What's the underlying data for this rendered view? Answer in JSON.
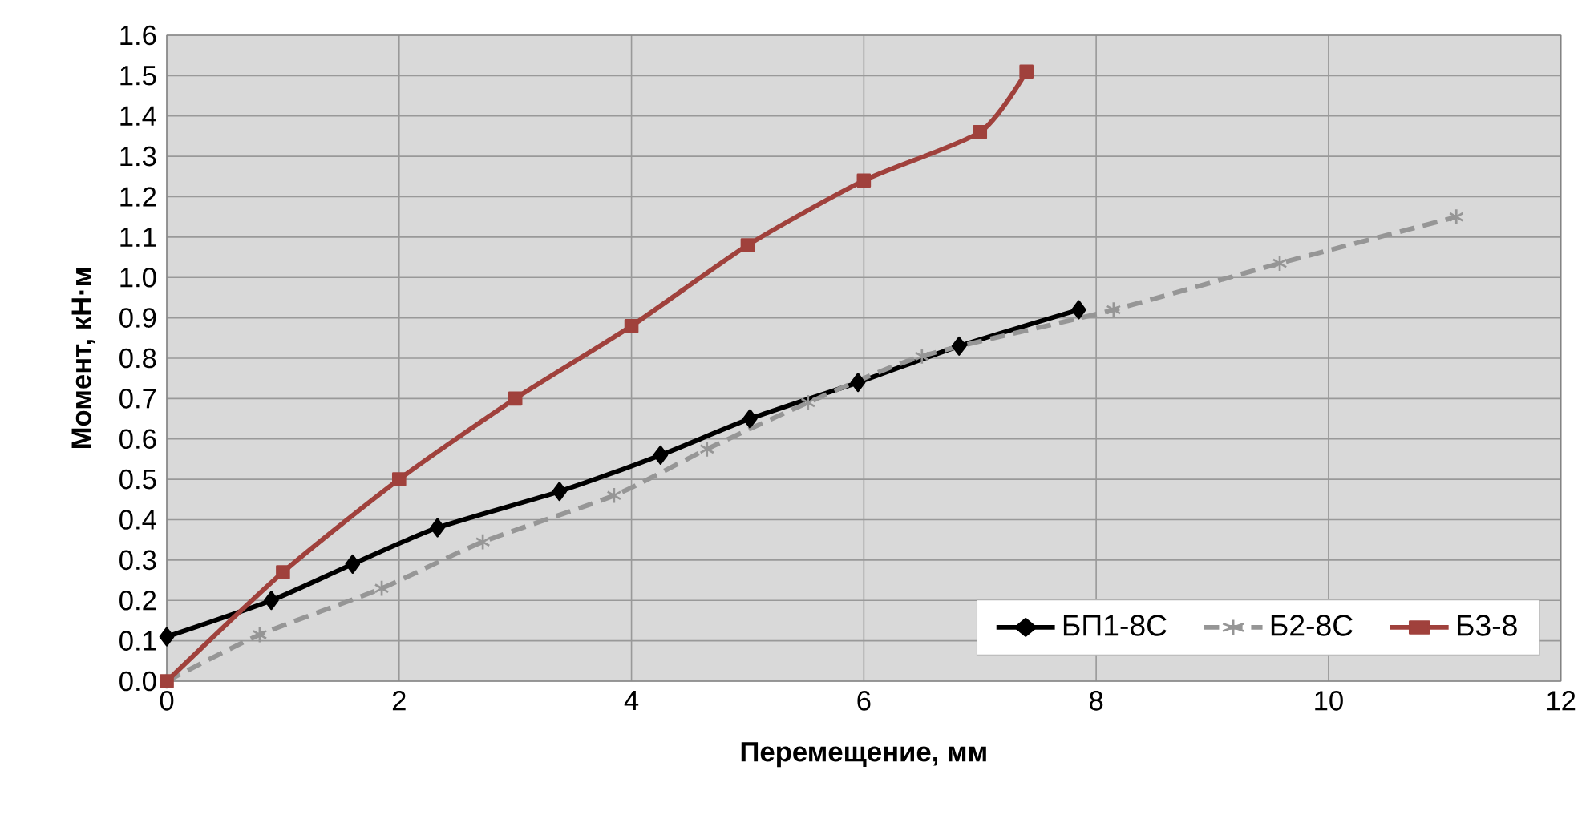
{
  "chart_data": {
    "type": "line",
    "xlabel": "Перемещение, мм",
    "ylabel": "Момент,  кН·м",
    "xlim": [
      0,
      12
    ],
    "xticks": [
      0,
      2,
      4,
      6,
      8,
      10,
      12
    ],
    "ylim": [
      0,
      1.6
    ],
    "yticks": [
      {
        "value": 0,
        "label": "0.0"
      },
      0.1,
      0.2,
      0.3,
      0.4,
      0.5,
      0.6,
      0.7,
      0.8,
      0.9,
      {
        "value": 1.0,
        "label": "1.0"
      },
      1.1,
      1.2,
      1.3,
      1.4,
      1.5,
      1.6
    ],
    "grid": true,
    "legend": "bottom right",
    "series": [
      {
        "name": "БП1-8С",
        "color": "#000000",
        "marker": "diamond",
        "line_style": "solid",
        "x": [
          0,
          0.9,
          1.6,
          2.33,
          3.38,
          4.25,
          5.02,
          5.95,
          6.82,
          7.85
        ],
        "values": [
          0.11,
          0.2,
          0.29,
          0.38,
          0.47,
          0.56,
          0.65,
          0.74,
          0.83,
          0.92
        ]
      },
      {
        "name": "Б2-8С",
        "color": "#969696",
        "marker": "cross",
        "line_style": "dashed",
        "x": [
          0,
          0.8,
          1.85,
          2.72,
          3.85,
          4.65,
          5.52,
          6.5,
          8.15,
          9.58,
          11.1
        ],
        "values": [
          0,
          0.115,
          0.23,
          0.345,
          0.46,
          0.575,
          0.69,
          0.805,
          0.92,
          1.035,
          1.15
        ]
      },
      {
        "name": "Б3-8",
        "color": "#a0413c",
        "marker": "square",
        "line_style": "solid",
        "x": [
          0,
          1,
          2,
          3,
          4,
          5,
          6,
          7,
          7.4
        ],
        "values": [
          0,
          0.27,
          0.5,
          0.7,
          0.88,
          1.08,
          1.24,
          1.36,
          1.51
        ]
      }
    ]
  }
}
